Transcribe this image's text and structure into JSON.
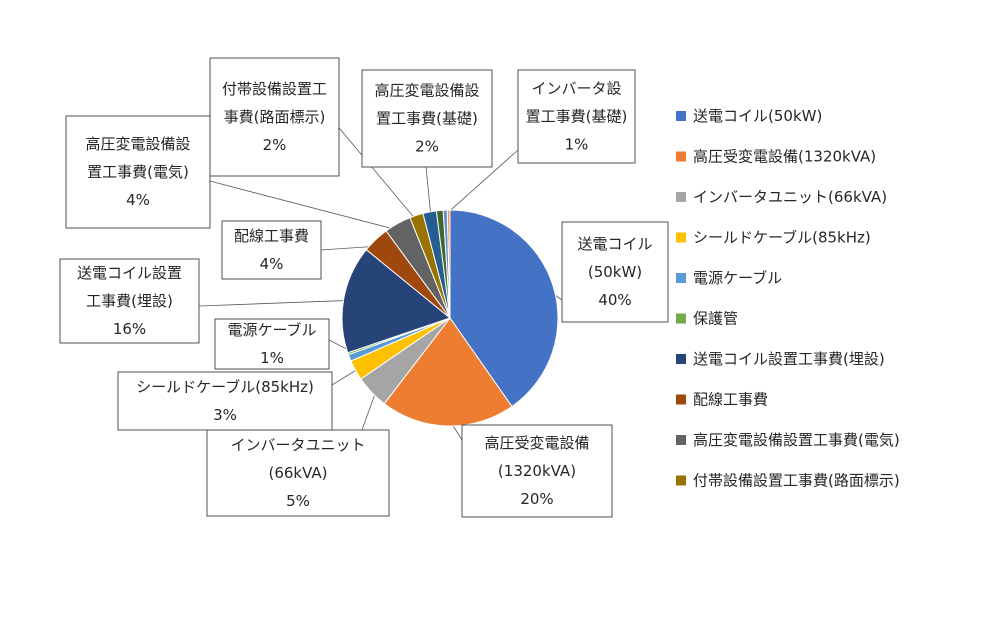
{
  "chart_data": {
    "type": "pie",
    "title": "",
    "legend_position": "right",
    "slices": [
      {
        "label": "送電コイル(50kW)",
        "callout": [
          "送電コイル",
          "(50kW)"
        ],
        "value": 40,
        "value_label": "40%",
        "color": "#4472C4"
      },
      {
        "label": "高圧受変電設備(1320kVA)",
        "callout": [
          "高圧受変電設備",
          "(1320kVA)"
        ],
        "value": 20,
        "value_label": "20%",
        "color": "#ED7D31"
      },
      {
        "label": "インバータユニット(66kVA)",
        "callout": [
          "インバータユニット",
          "(66kVA)"
        ],
        "value": 5,
        "value_label": "5%",
        "color": "#A5A5A5"
      },
      {
        "label": "シールドケーブル(85kHz)",
        "callout": [
          "シールドケーブル(85kHz)"
        ],
        "value": 3,
        "value_label": "3%",
        "color": "#FFC000"
      },
      {
        "label": "電源ケーブル",
        "callout": [
          "電源ケーブル"
        ],
        "value": 1,
        "value_label": "1%",
        "color": "#5B9BD5"
      },
      {
        "label": "保護管",
        "callout": [],
        "value": 0.3,
        "value_label": "",
        "color": "#70AD47"
      },
      {
        "label": "送電コイル設置工事費(埋設)",
        "callout": [
          "送電コイル設置",
          "工事費(埋設)"
        ],
        "value": 16,
        "value_label": "16%",
        "color": "#264478"
      },
      {
        "label": "配線工事費",
        "callout": [
          "配線工事費"
        ],
        "value": 4,
        "value_label": "4%",
        "color": "#9E480E"
      },
      {
        "label": "高圧変電設備設置工事費(電気)",
        "callout": [
          "高圧変電設備設",
          "置工事費(電気)"
        ],
        "value": 4,
        "value_label": "4%",
        "color": "#636363"
      },
      {
        "label": "付帯設備設置工事費(路面標示)",
        "callout": [
          "付帯設備設置工",
          "事費(路面標示)"
        ],
        "value": 2,
        "value_label": "2%",
        "color": "#997300"
      },
      {
        "label": "",
        "callout": [
          "高圧変電設備設",
          "置工事費(基礎)"
        ],
        "value": 2,
        "value_label": "2%",
        "color": "#255E91"
      },
      {
        "label": "",
        "callout": [
          "インバータ設",
          "置工事費(基礎)"
        ],
        "value": 1,
        "value_label": "1%",
        "color": "#43682B"
      },
      {
        "label": "",
        "callout": [],
        "value": 0.6,
        "value_label": "",
        "color": "#698ED0"
      },
      {
        "label": "",
        "callout": [],
        "value": 0.4,
        "value_label": "",
        "color": "#F1975A"
      }
    ]
  }
}
